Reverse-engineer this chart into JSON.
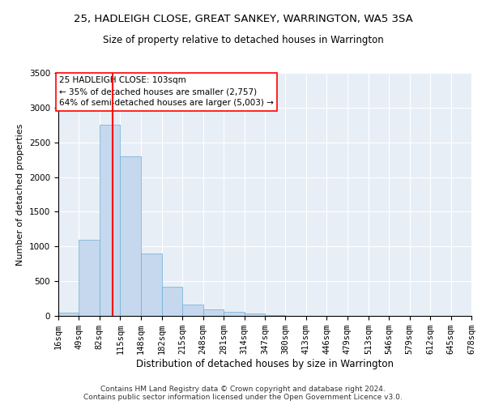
{
  "title1": "25, HADLEIGH CLOSE, GREAT SANKEY, WARRINGTON, WA5 3SA",
  "title2": "Size of property relative to detached houses in Warrington",
  "xlabel": "Distribution of detached houses by size in Warrington",
  "ylabel": "Number of detached properties",
  "bar_color": "#c5d8ee",
  "bar_edge_color": "#6aaed6",
  "background_color": "#e8eef6",
  "vline_x": 103,
  "annotation_text": "25 HADLEIGH CLOSE: 103sqm\n← 35% of detached houses are smaller (2,757)\n64% of semi-detached houses are larger (5,003) →",
  "bin_edges": [
    16,
    49,
    82,
    115,
    148,
    182,
    215,
    248,
    281,
    314,
    347,
    380,
    413,
    446,
    479,
    513,
    546,
    579,
    612,
    645,
    678
  ],
  "bar_heights": [
    50,
    1100,
    2750,
    2300,
    900,
    420,
    160,
    90,
    55,
    38,
    8,
    4,
    2,
    1,
    0,
    0,
    0,
    0,
    0,
    0
  ],
  "ylim": [
    0,
    3500
  ],
  "yticks": [
    0,
    500,
    1000,
    1500,
    2000,
    2500,
    3000,
    3500
  ],
  "footnote": "Contains HM Land Registry data © Crown copyright and database right 2024.\nContains public sector information licensed under the Open Government Licence v3.0.",
  "title1_fontsize": 9.5,
  "title2_fontsize": 8.5,
  "xlabel_fontsize": 8.5,
  "ylabel_fontsize": 8,
  "tick_fontsize": 7.5,
  "annot_fontsize": 7.5,
  "footnote_fontsize": 6.5
}
